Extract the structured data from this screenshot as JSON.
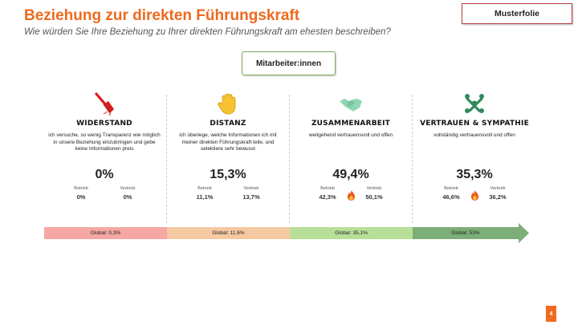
{
  "header": {
    "title": "Beziehung zur direkten Führungskraft",
    "subtitle": "Wie würden Sie Ihre Beziehung zu Ihrer direkten Führungskraft am ehesten beschreiben?",
    "tag": "Musterfolie"
  },
  "group_label": "Mitarbeiter:innen",
  "columns": [
    {
      "icon": "broom-icon",
      "title": "WIDERSTAND",
      "description": "ich versuche, so wenig Transparenz wie möglich in unsere Beziehung einzubringen und gebe keine Informationen preis",
      "percent": "0%",
      "betrieb_label": "Betrieb",
      "vertrieb_label": "Vertrieb",
      "betrieb": "0%",
      "vertrieb": "0%",
      "flame": false
    },
    {
      "icon": "raised-hand-icon",
      "title": "DISTANZ",
      "description": "ich überlege, welche Informationen ich mit meiner direkten Führungskraft teile, und selektiere sehr bewusst",
      "percent": "15,3%",
      "betrieb_label": "Betrieb",
      "vertrieb_label": "Vertrieb",
      "betrieb": "11,1%",
      "vertrieb": "13,7%",
      "flame": false
    },
    {
      "icon": "handshake-icon",
      "title": "ZUSAMMENARBEIT",
      "description": "weitgehend vertrauensvoll und offen",
      "percent": "49,4%",
      "betrieb_label": "Betrieb",
      "vertrieb_label": "Vertrieb",
      "betrieb": "42,3%",
      "vertrieb": "50,1%",
      "flame": true
    },
    {
      "icon": "team-hug-icon",
      "title": "VERTRAUEN & SYMPATHIE",
      "description": "vollständig vertrauensvoll und offen",
      "percent": "35,3%",
      "betrieb_label": "Betrieb",
      "vertrieb_label": "Vertrieb",
      "betrieb": "46,6%",
      "vertrieb": "36,2%",
      "flame": true
    }
  ],
  "global_bars": [
    {
      "label": "Global: 0,3%",
      "color": "#f4a7a3"
    },
    {
      "label": "Global: 11,6%",
      "color": "#f6c9a2"
    },
    {
      "label": "Global: 35,1%",
      "color": "#b8df98"
    },
    {
      "label": "Global: 53%",
      "color": "#7caf78"
    }
  ],
  "page_number": "4",
  "colors": {
    "accent": "#ee6a1e",
    "tag_border": "#b23b3b",
    "group_border": "#7aa35e"
  }
}
